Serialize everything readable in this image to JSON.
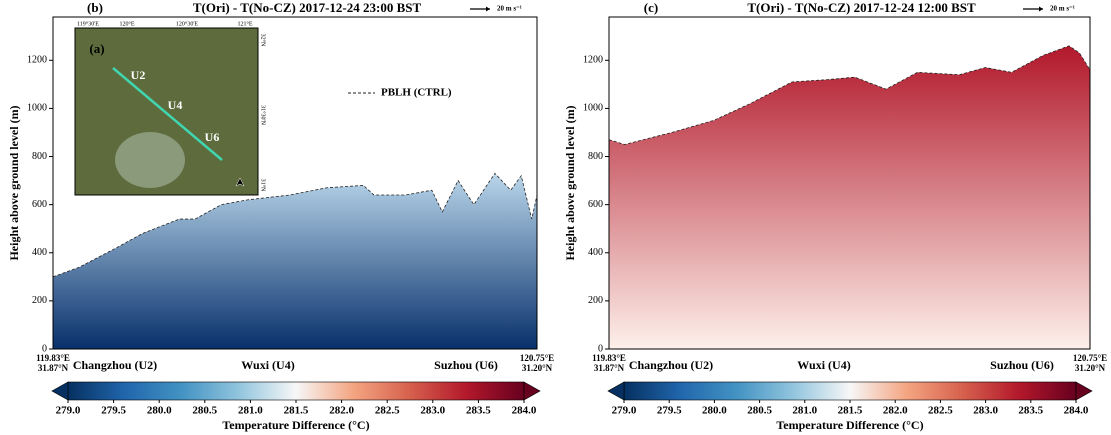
{
  "chart_data": [
    {
      "type": "area",
      "panel": "(b)",
      "title": "T(Ori) - T(No-CZ)  2017-12-24 23:00 BST",
      "ref_arrow": "20 m s⁻¹",
      "y_label": "Height above ground level (m)",
      "ylim": [
        0,
        1380
      ],
      "yticks": [
        0,
        200,
        400,
        600,
        800,
        1000,
        1200
      ],
      "xlim": [
        119.83,
        120.75
      ],
      "x_left_label": [
        "119.83°E",
        "31.87°N"
      ],
      "x_right_label": [
        "120.75°E",
        "31.20°N"
      ],
      "places": [
        "Changzhou (U2)",
        "Wuxi (U4)",
        "Suzhou (U6)"
      ],
      "x": [
        119.83,
        119.88,
        119.95,
        120.0,
        120.07,
        120.1,
        120.15,
        120.2,
        120.28,
        120.35,
        120.42,
        120.44,
        120.5,
        120.55,
        120.57,
        120.6,
        120.63,
        120.67,
        120.7,
        120.72,
        120.74,
        120.75
      ],
      "values": [
        300,
        340,
        420,
        480,
        540,
        540,
        600,
        620,
        640,
        670,
        680,
        640,
        640,
        660,
        570,
        700,
        600,
        730,
        660,
        720,
        540,
        640
      ],
      "fill_colors": [
        "#08306b",
        "#b9d6ea"
      ],
      "line_label": "PBLH (CTRL)",
      "colorbar": {
        "label": "Temperature Difference (°C)",
        "clim": [
          279,
          284
        ],
        "colors": [
          "#053061",
          "#2166ac",
          "#4393c3",
          "#92c5de",
          "#f7f7f7",
          "#f4a582",
          "#d6604d",
          "#b2182b",
          "#67001f"
        ],
        "ticks": [
          {
            "value": 279,
            "label": "279.0"
          },
          279.5,
          {
            "value": 280,
            "label": "280.0"
          },
          280.5,
          {
            "value": 281,
            "label": "281.0"
          },
          281.5,
          {
            "value": 282,
            "label": "282.0"
          },
          282.5,
          {
            "value": 283,
            "label": "283.0"
          },
          283.5,
          {
            "value": 284,
            "label": "284.0"
          }
        ]
      },
      "inset": {
        "label": "(a)",
        "sites": [
          "U2",
          "U4",
          "U6"
        ],
        "lon_labels": [
          "119°30'E",
          "120°E",
          "120°30'E",
          "121°E"
        ],
        "lat_labels": [
          "32°N",
          "31°30'N",
          "31°N"
        ]
      }
    },
    {
      "type": "area",
      "panel": "(c)",
      "title": "T(Ori) - T(No-CZ)  2017-12-24 12:00 BST",
      "ref_arrow": "20 m s⁻¹",
      "y_label": "Height above ground level (m)",
      "ylim": [
        0,
        1380
      ],
      "yticks": [
        0,
        200,
        400,
        600,
        800,
        1000,
        1200
      ],
      "xlim": [
        119.83,
        120.75
      ],
      "x_left_label": [
        "119.83°E",
        "31.87°N"
      ],
      "x_right_label": [
        "120.75°E",
        "31.20°N"
      ],
      "places": [
        "Changzhou (U2)",
        "Wuxi (U4)",
        "Suzhou (U6)"
      ],
      "x": [
        119.83,
        119.86,
        119.95,
        120.03,
        120.1,
        120.18,
        120.25,
        120.3,
        120.36,
        120.42,
        120.5,
        120.55,
        120.6,
        120.66,
        120.71,
        120.73,
        120.75
      ],
      "values": [
        870,
        850,
        900,
        950,
        1020,
        1110,
        1120,
        1130,
        1080,
        1150,
        1140,
        1170,
        1150,
        1220,
        1260,
        1230,
        1160
      ],
      "fill_colors": [
        "#fdf0ea",
        "#b2182b"
      ],
      "colorbar": {
        "label": "Temperature Difference (°C)",
        "clim": [
          279,
          284
        ],
        "colors": [
          "#053061",
          "#2166ac",
          "#4393c3",
          "#92c5de",
          "#f7f7f7",
          "#f4a582",
          "#d6604d",
          "#b2182b",
          "#67001f"
        ],
        "ticks": [
          {
            "value": 279,
            "label": "279.0"
          },
          279.5,
          {
            "value": 280,
            "label": "280.0"
          },
          280.5,
          {
            "value": 281,
            "label": "281.0"
          },
          281.5,
          {
            "value": 282,
            "label": "282.0"
          },
          282.5,
          {
            "value": 283,
            "label": "283.0"
          },
          283.5,
          {
            "value": 284,
            "label": "284.0"
          }
        ]
      }
    }
  ]
}
